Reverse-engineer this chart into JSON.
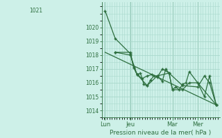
{
  "background_color": "#cdf0e8",
  "grid_color": "#a8d8cc",
  "line_color": "#2d6e3e",
  "marker_color": "#2d6e3e",
  "xlabel": "Pression niveau de la mer( hPa )",
  "ylim": [
    1013.5,
    1021.8
  ],
  "yticks": [
    1014,
    1015,
    1016,
    1017,
    1018,
    1019,
    1020
  ],
  "ytop_label": "1021",
  "xtick_labels": [
    "Lun",
    "Jeu",
    "Mar",
    "Mer"
  ],
  "xtick_positions": [
    2,
    17,
    42,
    57
  ],
  "xlim": [
    0,
    70
  ],
  "series1_x": [
    2,
    8,
    17,
    19,
    21,
    23,
    25,
    27,
    29,
    31,
    33,
    36,
    38,
    40,
    42,
    44,
    46,
    48,
    50,
    52,
    57,
    61,
    64,
    68
  ],
  "series1_y": [
    1021.2,
    1019.2,
    1018.1,
    1017.1,
    1016.6,
    1016.7,
    1015.9,
    1015.8,
    1016.2,
    1016.5,
    1016.5,
    1016.1,
    1017.0,
    1016.7,
    1015.5,
    1015.7,
    1015.5,
    1015.9,
    1016.0,
    1016.8,
    1016.0,
    1015.0,
    1016.5,
    1014.4
  ],
  "series2_x": [
    8,
    17,
    19,
    21,
    24,
    27,
    30,
    33,
    36,
    40,
    42,
    48,
    52,
    57,
    68
  ],
  "series2_y": [
    1018.2,
    1018.2,
    1017.1,
    1016.6,
    1016.3,
    1016.5,
    1016.6,
    1016.4,
    1017.0,
    1016.7,
    1015.5,
    1015.5,
    1016.0,
    1016.0,
    1014.4
  ],
  "series3_x": [
    8,
    17,
    21,
    27,
    33,
    40,
    48,
    57,
    61,
    64,
    68
  ],
  "series3_y": [
    1018.2,
    1018.0,
    1016.6,
    1015.8,
    1016.5,
    1016.7,
    1015.8,
    1015.7,
    1016.5,
    1016.0,
    1014.4
  ],
  "trend_x": [
    2,
    68
  ],
  "trend_y": [
    1018.2,
    1014.4
  ],
  "vlines": [
    2,
    17,
    42,
    57
  ]
}
